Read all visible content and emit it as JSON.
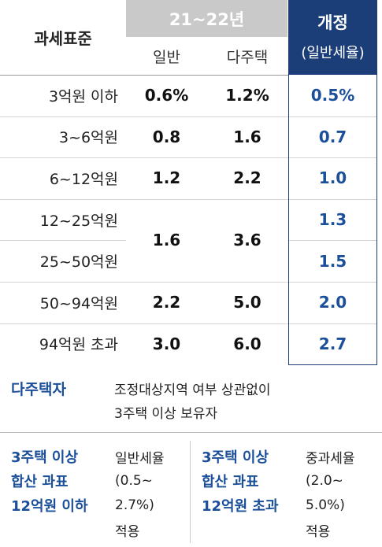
{
  "header": {
    "bracket_label": "과세표준",
    "period": "21~22년",
    "col_general": "일반",
    "col_multi": "다주택",
    "reform_title": "개정",
    "reform_sub": "(일반세율)"
  },
  "table": {
    "rows": [
      {
        "bracket": "3억원 이하",
        "general": "0.6%",
        "multi": "1.2%",
        "reform": "0.5%"
      },
      {
        "bracket": "3~6억원",
        "general": "0.8",
        "multi": "1.6",
        "reform": "0.7"
      },
      {
        "bracket": "6~12억원",
        "general": "1.2",
        "multi": "2.2",
        "reform": "1.0"
      },
      {
        "bracket": "12~25억원",
        "general": "1.6",
        "multi": "3.6",
        "reform": "1.3"
      },
      {
        "bracket": "25~50억원",
        "reform": "1.5"
      },
      {
        "bracket": "50~94억원",
        "general": "2.2",
        "multi": "5.0",
        "reform": "2.0"
      },
      {
        "bracket": "94억원 초과",
        "general": "3.0",
        "multi": "6.0",
        "reform": "2.7"
      }
    ]
  },
  "note": {
    "label": "다주택자",
    "lines": [
      "조정대상지역 여부 상관없이",
      "3주택 이상 보유자"
    ]
  },
  "cases": [
    {
      "condition": [
        "3주택 이상",
        "합산 과표",
        "12억원 이하"
      ],
      "rate": [
        "일반세율",
        "(0.5~",
        "2.7%)",
        "적용"
      ]
    },
    {
      "condition": [
        "3주택 이상",
        "합산 과표",
        "12억원 초과"
      ],
      "rate": [
        "중과세율",
        "(2.0~",
        "5.0%)",
        "적용"
      ]
    }
  ]
}
